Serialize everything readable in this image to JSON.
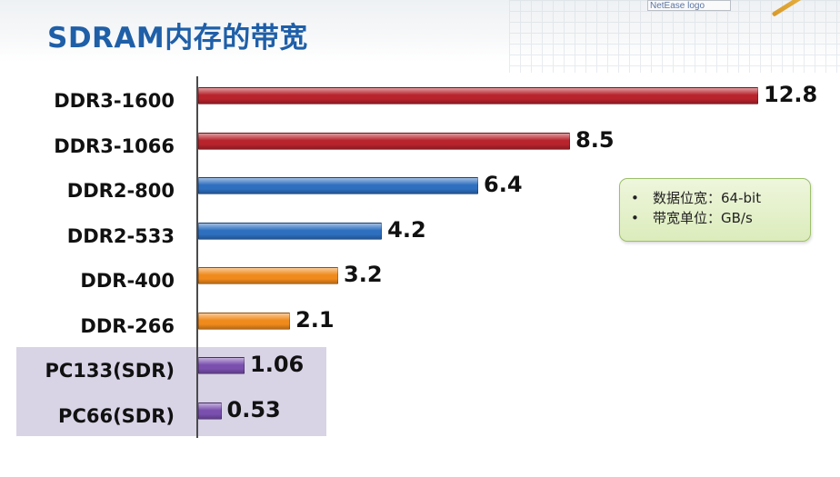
{
  "header": {
    "title": "SDRAM内存的带宽",
    "logo_alt": "NetEase logo"
  },
  "note": {
    "items": [
      "数据位宽：64-bit",
      "带宽单位：GB/s"
    ]
  },
  "colors": {
    "ddr3": "#b8232c",
    "ddr2": "#2e6fc0",
    "ddr": "#f08a1c",
    "sdr": "#7a4fae",
    "highlight": "#d9d3e6",
    "title": "#1f5fa8"
  },
  "chart_data": {
    "type": "bar",
    "orientation": "horizontal",
    "categories": [
      "DDR3-1600",
      "DDR3-1066",
      "DDR2-800",
      "DDR2-533",
      "DDR-400",
      "DDR-266",
      "PC133(SDR)",
      "PC66(SDR)"
    ],
    "values": [
      12.8,
      8.5,
      6.4,
      4.2,
      3.2,
      2.1,
      1.06,
      0.53
    ],
    "value_labels": [
      "12.8",
      "8.5",
      "6.4",
      "4.2",
      "3.2",
      "2.1",
      "1.06",
      "0.53"
    ],
    "groups": [
      "ddr3",
      "ddr3",
      "ddr2",
      "ddr2",
      "ddr",
      "ddr",
      "sdr",
      "sdr"
    ],
    "title": "",
    "xlabel": "",
    "ylabel": "",
    "xlim": [
      0,
      12.8
    ],
    "grid": false,
    "highlighted_categories": [
      "PC133(SDR)",
      "PC66(SDR)"
    ]
  }
}
